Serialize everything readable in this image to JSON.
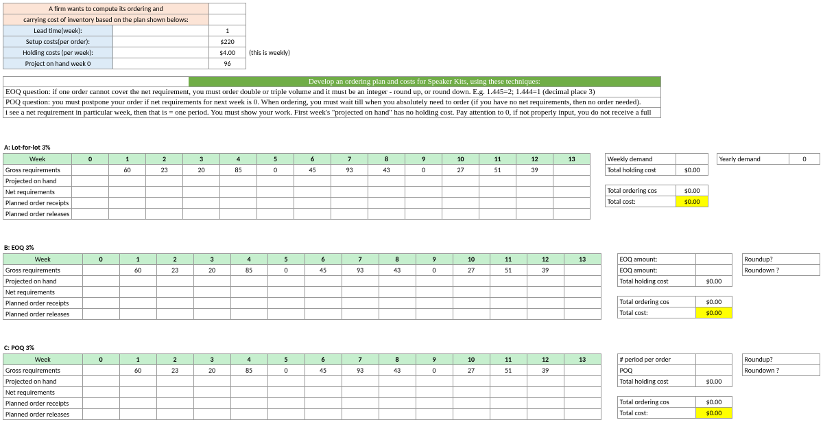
{
  "header": {
    "title": "A firm wants to compute its ordering and",
    "subtitle": "carrying cost of inventory based on the plan shown belows:",
    "rows": [
      {
        "label": "Lead time(week):",
        "value": "1",
        "extra": ""
      },
      {
        "label": "Setup costs(per order):",
        "value": "$220",
        "extra": ""
      },
      {
        "label": "Holding costs (per week):",
        "value": "$4.00",
        "extra": "(this is weekly)"
      },
      {
        "label": "Project on hand week 0",
        "value": "96",
        "extra": ""
      }
    ]
  },
  "instructions": {
    "banner": "Develop an ordering plan and costs for Speaker Kits, using these techniques:",
    "lines": [
      "EOQ question: if one order cannot cover the net requirement, you must order double or triple volume and it must be an integer - round up, or round down. E.g. 1.445=2; 1.444=1 (decimal place 3)",
      "POQ question: you must postpone your order if net requirements for next week is 0. When ordering, you must wait till when you absolutely need to order (if you have no net requirements, then no order needed).",
      "i see a net requirement in particular week, then that is = one period. You must show your work. First week's \"projected on hand\" has no holding cost. Pay attention to 0, if not properly input, you do not receive a full"
    ]
  },
  "weeks": [
    "0",
    "1",
    "2",
    "3",
    "4",
    "5",
    "6",
    "7",
    "8",
    "9",
    "10",
    "11",
    "12",
    "13"
  ],
  "gross": [
    "",
    "60",
    "23",
    "20",
    "85",
    "0",
    "45",
    "93",
    "43",
    "0",
    "27",
    "51",
    "39",
    ""
  ],
  "row_labels": [
    "Gross requirements",
    "Projected on hand",
    "Net requirements",
    "Planned order receipts",
    "Planned order releases"
  ],
  "sectionA": {
    "title": "A: Lot-for-lot 3%",
    "side": [
      {
        "label": "Weekly demand",
        "val": "",
        "hl": false
      },
      {
        "label": "Total holding cost",
        "val": "$0.00",
        "hl": false
      },
      {
        "label": "",
        "val": "",
        "hl": false
      },
      {
        "label": "Total ordering cos",
        "val": "$0.00",
        "hl": false
      },
      {
        "label": "Total cost:",
        "val": "$0.00",
        "hl": true
      }
    ],
    "far": [
      {
        "label": "Yearly demand",
        "val": "0"
      }
    ]
  },
  "sectionB": {
    "title": "B: EOQ 3%",
    "side": [
      {
        "label": "EOQ amount:",
        "val": "",
        "hl": false
      },
      {
        "label": "EOQ amount:",
        "val": "",
        "hl": false
      },
      {
        "label": "Total holding cost",
        "val": "$0.00",
        "hl": false
      },
      {
        "label": "",
        "val": "",
        "hl": false
      },
      {
        "label": "Total ordering cos",
        "val": "$0.00",
        "hl": false
      },
      {
        "label": "Total cost:",
        "val": "$0.00",
        "hl": true
      }
    ],
    "far": [
      {
        "label": "Roundup?",
        "val": ""
      },
      {
        "label": "Roundown ?",
        "val": ""
      }
    ]
  },
  "sectionC": {
    "title": "C: POQ 3%",
    "side": [
      {
        "label": "# period per order",
        "val": "",
        "hl": false
      },
      {
        "label": "POQ",
        "val": "",
        "hl": false
      },
      {
        "label": "Total holding cost",
        "val": "$0.00",
        "hl": false
      },
      {
        "label": "",
        "val": "",
        "hl": false
      },
      {
        "label": "Total ordering cos",
        "val": "$0.00",
        "hl": false
      },
      {
        "label": "Total cost:",
        "val": "$0.00",
        "hl": true
      }
    ],
    "far": [
      {
        "label": "Roundup?",
        "val": ""
      },
      {
        "label": "Roundown ?",
        "val": ""
      }
    ]
  },
  "colors": {
    "orange": "#fce4d6",
    "blue": "#ddebf7",
    "green": "#c6efce",
    "dkgreen": "#70ad47",
    "yellow": "#ffff00",
    "grid": "#999999"
  }
}
